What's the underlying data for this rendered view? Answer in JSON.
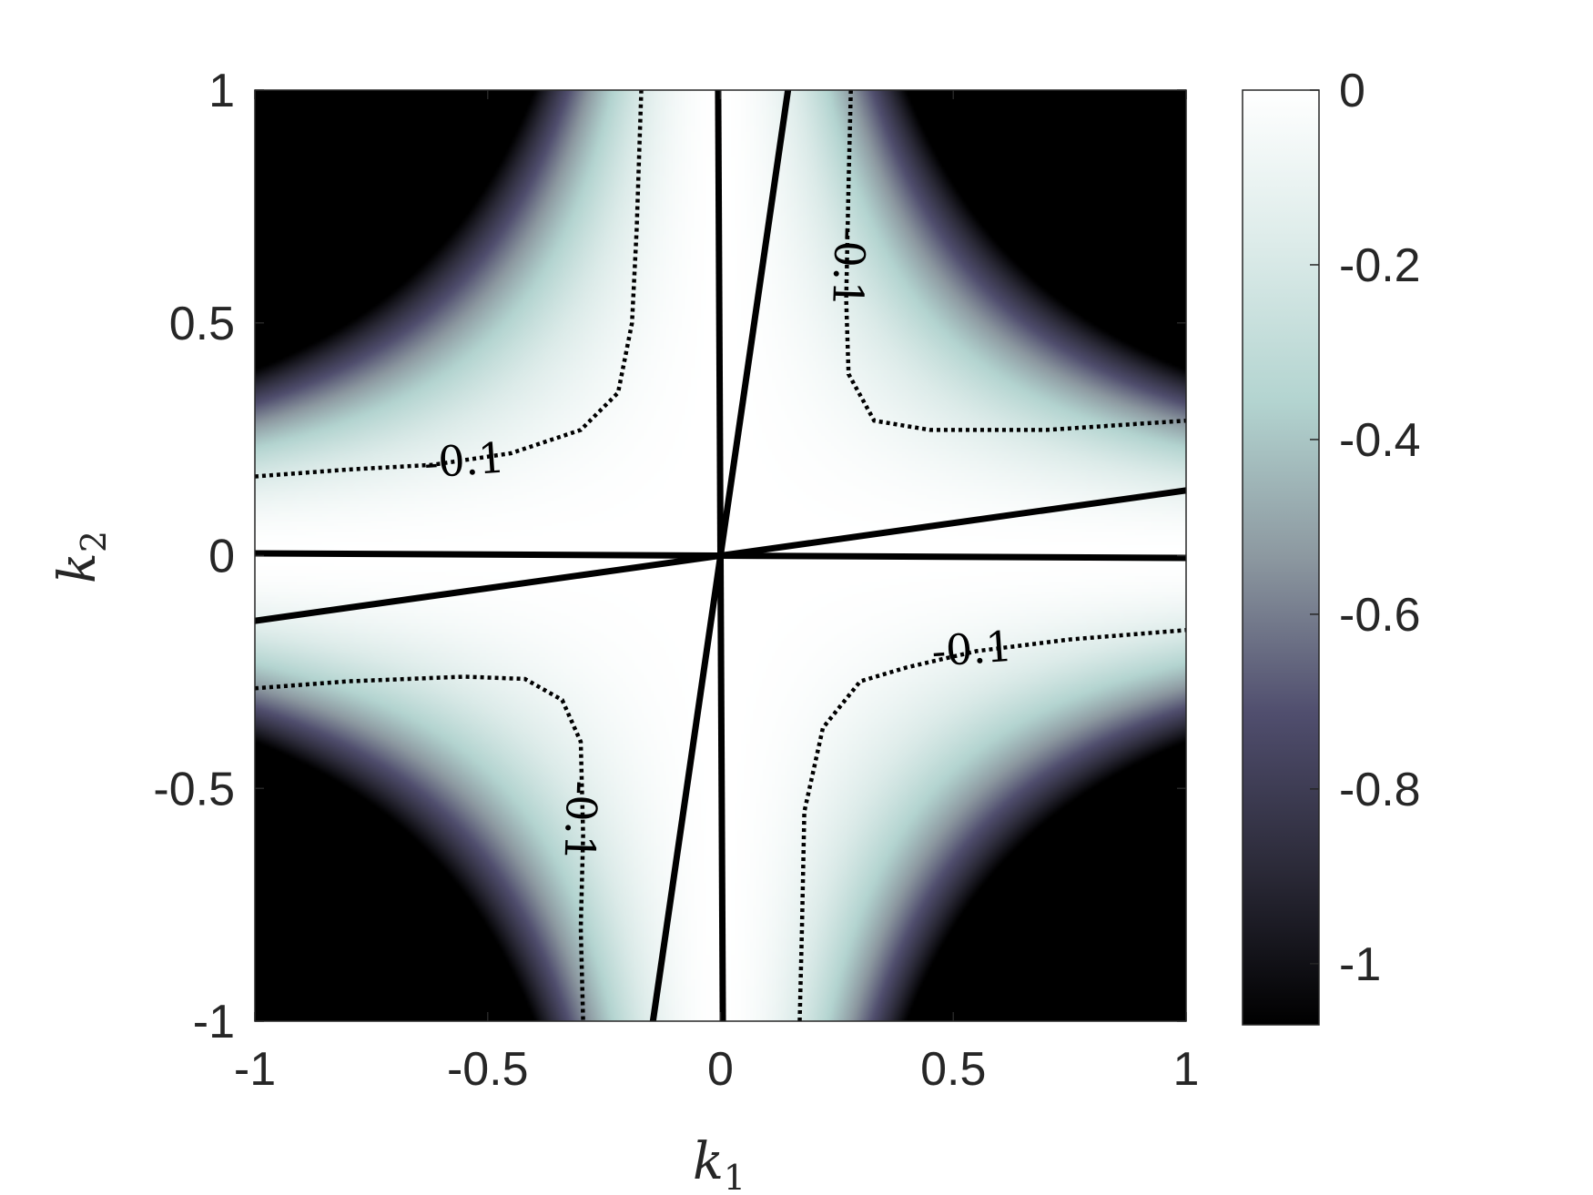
{
  "chart_data": {
    "type": "heatmap",
    "title": "",
    "xlabel": {
      "base": "k",
      "sub": "1"
    },
    "ylabel": {
      "base": "k",
      "sub": "2"
    },
    "xlim": [
      -1,
      1
    ],
    "ylim": [
      -1,
      1
    ],
    "x_ticks": [
      -1,
      -0.5,
      0,
      0.5,
      1
    ],
    "x_tick_labels": [
      "-1",
      "-0.5",
      "0",
      "0.5",
      "1"
    ],
    "y_ticks": [
      -1,
      -0.5,
      0,
      0.5,
      1
    ],
    "y_tick_labels": [
      "-1",
      "-0.5",
      "0",
      "0.5",
      "1"
    ],
    "colorbar": {
      "location": "right",
      "range": [
        -1.07,
        0
      ],
      "ticks": [
        0,
        -0.2,
        -0.4,
        -0.6,
        -0.8,
        -1
      ],
      "tick_labels": [
        "0",
        "-0.2",
        "-0.4",
        "-0.6",
        "-0.8",
        "-1"
      ],
      "colormap": [
        "#000000",
        "#2b2a38",
        "#504e6e",
        "#8c98a0",
        "#b3d4d0",
        "#dcebe9",
        "#ffffff"
      ]
    },
    "field": "value = -(k1 * k2)^2 * 6.7, clipped to [-1.07, 0]",
    "zero_lines": {
      "style": "solid",
      "color": "#000000",
      "lines": [
        {
          "from": [
            -1,
            0.005
          ],
          "to": [
            1,
            -0.005
          ]
        },
        {
          "from": [
            -0.005,
            1
          ],
          "to": [
            0.005,
            -1
          ]
        },
        {
          "from": [
            -1,
            -0.14
          ],
          "to": [
            1,
            0.14
          ]
        },
        {
          "from": [
            -0.145,
            -1
          ],
          "to": [
            0.145,
            1
          ]
        }
      ]
    },
    "contours": [
      {
        "level": -0.1,
        "label": "-0.1",
        "style": "dotted",
        "quadrant": "upper-left",
        "points": [
          [
            -1,
            0.17
          ],
          [
            -0.8,
            0.185
          ],
          [
            -0.62,
            0.195
          ],
          [
            -0.45,
            0.22
          ],
          [
            -0.3,
            0.27
          ],
          [
            -0.22,
            0.35
          ],
          [
            -0.19,
            0.5
          ],
          [
            -0.18,
            0.7
          ],
          [
            -0.17,
            1
          ]
        ],
        "label_at": [
          -0.55,
          0.205
        ],
        "label_rotation_deg": -4
      },
      {
        "level": -0.1,
        "label": "-0.1",
        "style": "dotted",
        "quadrant": "upper-right",
        "points": [
          [
            0.28,
            1
          ],
          [
            0.275,
            0.8
          ],
          [
            0.27,
            0.55
          ],
          [
            0.275,
            0.39
          ],
          [
            0.33,
            0.29
          ],
          [
            0.45,
            0.27
          ],
          [
            0.7,
            0.27
          ],
          [
            1,
            0.29
          ]
        ],
        "label_at": [
          0.276,
          0.62
        ],
        "label_rotation_deg": 92
      },
      {
        "level": -0.1,
        "label": "-0.1",
        "style": "dotted",
        "quadrant": "lower-left",
        "points": [
          [
            -1,
            -0.285
          ],
          [
            -0.8,
            -0.27
          ],
          [
            -0.55,
            -0.26
          ],
          [
            -0.42,
            -0.265
          ],
          [
            -0.34,
            -0.31
          ],
          [
            -0.3,
            -0.4
          ],
          [
            -0.295,
            -0.6
          ],
          [
            -0.3,
            -0.8
          ],
          [
            -0.295,
            -1
          ]
        ],
        "label_at": [
          -0.3,
          -0.57
        ],
        "label_rotation_deg": 92
      },
      {
        "level": -0.1,
        "label": "-0.1",
        "style": "dotted",
        "quadrant": "lower-right",
        "points": [
          [
            0.17,
            -1
          ],
          [
            0.175,
            -0.8
          ],
          [
            0.18,
            -0.55
          ],
          [
            0.22,
            -0.37
          ],
          [
            0.3,
            -0.27
          ],
          [
            0.4,
            -0.24
          ],
          [
            0.55,
            -0.205
          ],
          [
            0.75,
            -0.18
          ],
          [
            1,
            -0.16
          ]
        ],
        "label_at": [
          0.54,
          -0.2
        ],
        "label_rotation_deg": -4
      }
    ]
  }
}
